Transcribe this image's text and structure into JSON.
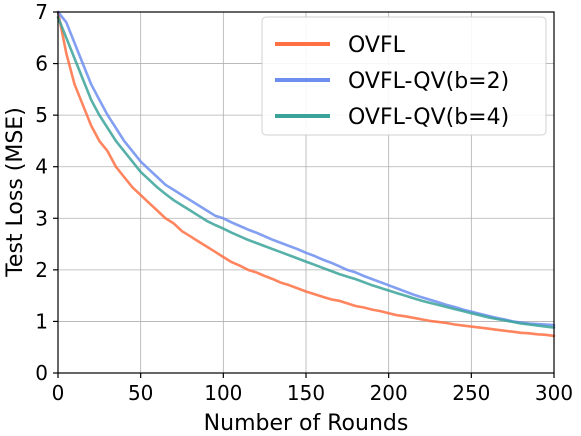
{
  "chart_data": {
    "type": "line",
    "title": "",
    "xlabel": "Number of Rounds",
    "ylabel": "Test Loss (MSE)",
    "xlim": [
      0,
      300
    ],
    "ylim": [
      0,
      7
    ],
    "xticks": [
      "0",
      "50",
      "100",
      "150",
      "200",
      "250",
      "300"
    ],
    "yticks": [
      "0",
      "1",
      "2",
      "3",
      "4",
      "5",
      "6",
      "7"
    ],
    "grid": true,
    "legend_position": "top-right",
    "series": [
      {
        "name": "OVFL",
        "color": "#FF7043",
        "x": [
          0,
          5,
          10,
          15,
          20,
          25,
          30,
          35,
          40,
          45,
          50,
          55,
          60,
          65,
          70,
          75,
          80,
          85,
          90,
          95,
          100,
          105,
          110,
          115,
          120,
          125,
          130,
          135,
          140,
          145,
          150,
          155,
          160,
          165,
          170,
          175,
          180,
          185,
          190,
          195,
          200,
          205,
          210,
          215,
          220,
          225,
          230,
          235,
          240,
          245,
          250,
          255,
          260,
          265,
          270,
          275,
          280,
          285,
          290,
          295,
          300
        ],
        "values": [
          7.0,
          6.2,
          5.6,
          5.2,
          4.8,
          4.5,
          4.3,
          4.0,
          3.8,
          3.6,
          3.45,
          3.3,
          3.15,
          3.0,
          2.9,
          2.75,
          2.65,
          2.55,
          2.45,
          2.35,
          2.25,
          2.15,
          2.08,
          2.0,
          1.95,
          1.88,
          1.82,
          1.75,
          1.7,
          1.64,
          1.58,
          1.53,
          1.48,
          1.43,
          1.4,
          1.35,
          1.3,
          1.27,
          1.23,
          1.2,
          1.16,
          1.12,
          1.1,
          1.07,
          1.04,
          1.01,
          0.99,
          0.97,
          0.94,
          0.92,
          0.9,
          0.88,
          0.86,
          0.84,
          0.82,
          0.8,
          0.78,
          0.77,
          0.75,
          0.74,
          0.72
        ]
      },
      {
        "name": "OVFL-QV(b=2)",
        "color": "#6C8EF0",
        "x": [
          0,
          5,
          10,
          15,
          20,
          25,
          30,
          35,
          40,
          45,
          50,
          55,
          60,
          65,
          70,
          75,
          80,
          85,
          90,
          95,
          100,
          105,
          110,
          115,
          120,
          125,
          130,
          135,
          140,
          145,
          150,
          155,
          160,
          165,
          170,
          175,
          180,
          185,
          190,
          195,
          200,
          205,
          210,
          215,
          220,
          225,
          230,
          235,
          240,
          245,
          250,
          255,
          260,
          265,
          270,
          275,
          280,
          285,
          290,
          295,
          300
        ],
        "values": [
          7.0,
          6.8,
          6.4,
          6.0,
          5.6,
          5.3,
          5.0,
          4.75,
          4.5,
          4.3,
          4.1,
          3.95,
          3.8,
          3.65,
          3.55,
          3.45,
          3.35,
          3.25,
          3.15,
          3.05,
          3.0,
          2.92,
          2.85,
          2.78,
          2.72,
          2.65,
          2.58,
          2.52,
          2.46,
          2.4,
          2.33,
          2.27,
          2.2,
          2.14,
          2.07,
          2.0,
          1.95,
          1.88,
          1.82,
          1.76,
          1.7,
          1.64,
          1.58,
          1.52,
          1.47,
          1.42,
          1.37,
          1.32,
          1.28,
          1.23,
          1.19,
          1.15,
          1.11,
          1.07,
          1.04,
          1.0,
          0.98,
          0.96,
          0.95,
          0.94,
          0.93
        ]
      },
      {
        "name": "OVFL-QV(b=4)",
        "color": "#3AA39A",
        "x": [
          0,
          5,
          10,
          15,
          20,
          25,
          30,
          35,
          40,
          45,
          50,
          55,
          60,
          65,
          70,
          75,
          80,
          85,
          90,
          95,
          100,
          105,
          110,
          115,
          120,
          125,
          130,
          135,
          140,
          145,
          150,
          155,
          160,
          165,
          170,
          175,
          180,
          185,
          190,
          195,
          200,
          205,
          210,
          215,
          220,
          225,
          230,
          235,
          240,
          245,
          250,
          255,
          260,
          265,
          270,
          275,
          280,
          285,
          290,
          295,
          300
        ],
        "values": [
          6.9,
          6.5,
          6.1,
          5.7,
          5.3,
          5.0,
          4.75,
          4.5,
          4.3,
          4.1,
          3.9,
          3.75,
          3.6,
          3.47,
          3.35,
          3.25,
          3.15,
          3.05,
          2.95,
          2.87,
          2.8,
          2.72,
          2.65,
          2.58,
          2.52,
          2.46,
          2.4,
          2.34,
          2.28,
          2.22,
          2.16,
          2.1,
          2.04,
          1.98,
          1.92,
          1.87,
          1.82,
          1.76,
          1.7,
          1.65,
          1.6,
          1.55,
          1.5,
          1.45,
          1.4,
          1.36,
          1.32,
          1.28,
          1.24,
          1.2,
          1.16,
          1.12,
          1.08,
          1.05,
          1.02,
          0.99,
          0.96,
          0.94,
          0.92,
          0.9,
          0.88
        ]
      }
    ]
  }
}
